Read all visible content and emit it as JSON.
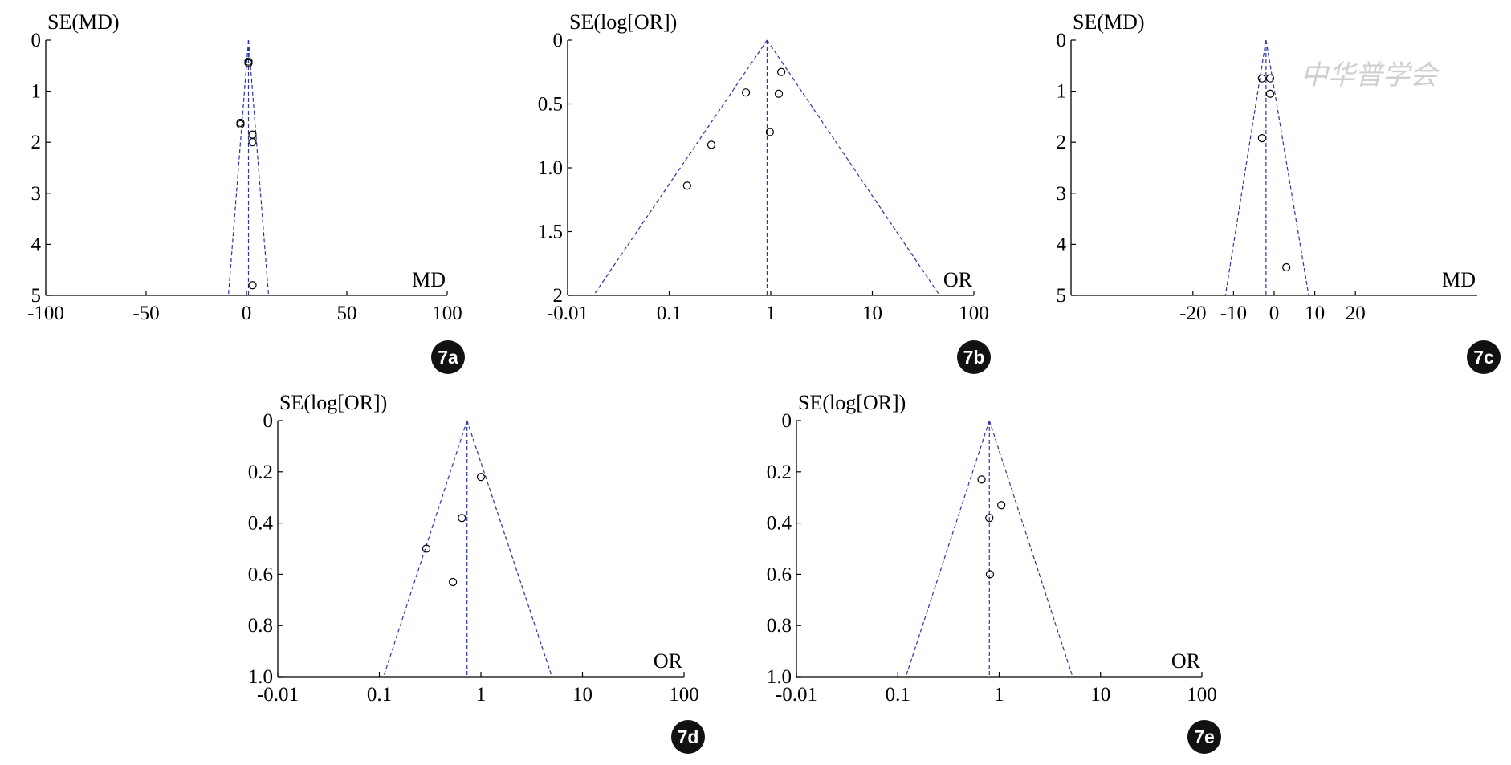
{
  "colors": {
    "axis": "#000000",
    "funnel": "#2b35a8",
    "points": "#000000",
    "badge": "#111111",
    "watermark": "#cfcfcf"
  },
  "watermark": {
    "text": "中华普学会"
  },
  "chart_data": [
    {
      "id": "7a",
      "badge": "7a",
      "type": "scatter",
      "scale": "linear",
      "ylabel": "SE(MD)",
      "xlabel": "MD",
      "xlim": [
        -100,
        100
      ],
      "ylim": [
        0,
        5
      ],
      "xticks": [
        -100,
        -50,
        0,
        50,
        100
      ],
      "xtick_labels": [
        "-100",
        "-50",
        "0",
        "50",
        "100"
      ],
      "yticks": [
        0,
        1,
        2,
        3,
        4,
        5
      ],
      "ytick_labels": [
        "0",
        "1",
        "2",
        "3",
        "4",
        "5"
      ],
      "pooled": 1,
      "funnel_bottom": [
        -9,
        11
      ],
      "points": [
        [
          1,
          0.42
        ],
        [
          1,
          0.45
        ],
        [
          -3,
          1.62
        ],
        [
          -3,
          1.65
        ],
        [
          3,
          1.85
        ],
        [
          3,
          2.0
        ],
        [
          3,
          4.8
        ]
      ]
    },
    {
      "id": "7b",
      "badge": "7b",
      "type": "scatter",
      "scale": "log",
      "ylabel": "SE(log[OR])",
      "xlabel": "OR",
      "xlim": [
        0.01,
        100
      ],
      "ylim": [
        0,
        2
      ],
      "xticks": [
        0.01,
        0.1,
        1,
        10,
        100
      ],
      "xtick_labels": [
        "-0.01",
        "0.1",
        "1",
        "10",
        "100"
      ],
      "yticks": [
        0,
        0.5,
        1.0,
        1.5,
        2
      ],
      "ytick_labels": [
        "0",
        "0.5",
        "1.0",
        "1.5",
        "2"
      ],
      "pooled": 0.92,
      "funnel_bottom": [
        0.018,
        46
      ],
      "points": [
        [
          1.27,
          0.25
        ],
        [
          0.57,
          0.41
        ],
        [
          1.2,
          0.42
        ],
        [
          0.98,
          0.72
        ],
        [
          0.26,
          0.82
        ],
        [
          0.15,
          1.14
        ]
      ]
    },
    {
      "id": "7c",
      "badge": "7c",
      "type": "scatter",
      "scale": "linear",
      "ylabel": "SE(MD)",
      "xlabel": "MD",
      "xlim": [
        -50,
        50
      ],
      "ylim": [
        0,
        5
      ],
      "xticks": [
        -20,
        -10,
        0,
        10,
        20
      ],
      "xtick_labels": [
        "-20",
        "-10",
        "0",
        "10",
        "20"
      ],
      "yticks": [
        0,
        1,
        2,
        3,
        4,
        5
      ],
      "ytick_labels": [
        "0",
        "1",
        "2",
        "3",
        "4",
        "5"
      ],
      "pooled": -2,
      "funnel_bottom": [
        -12,
        8.5
      ],
      "points": [
        [
          -3,
          0.75
        ],
        [
          -1,
          0.75
        ],
        [
          -1,
          1.05
        ],
        [
          -3,
          1.92
        ],
        [
          3,
          4.45
        ]
      ]
    },
    {
      "id": "7d",
      "badge": "7d",
      "type": "scatter",
      "scale": "log",
      "ylabel": "SE(log[OR])",
      "xlabel": "OR",
      "xlim": [
        0.01,
        100
      ],
      "ylim": [
        0,
        1.0
      ],
      "xticks": [
        0.01,
        0.1,
        1,
        10,
        100
      ],
      "xtick_labels": [
        "-0.01",
        "0.1",
        "1",
        "10",
        "100"
      ],
      "yticks": [
        0,
        0.2,
        0.4,
        0.6,
        0.8,
        1.0
      ],
      "ytick_labels": [
        "0",
        "0.2",
        "0.4",
        "0.6",
        "0.8",
        "1.0"
      ],
      "pooled": 0.73,
      "funnel_bottom": [
        0.11,
        5
      ],
      "points": [
        [
          1.0,
          0.22
        ],
        [
          0.65,
          0.38
        ],
        [
          0.29,
          0.5
        ],
        [
          0.53,
          0.63
        ]
      ]
    },
    {
      "id": "7e",
      "badge": "7e",
      "type": "scatter",
      "scale": "log",
      "ylabel": "SE(log[OR])",
      "xlabel": "OR",
      "xlim": [
        0.01,
        100
      ],
      "ylim": [
        0,
        1.0
      ],
      "xticks": [
        0.01,
        0.1,
        1,
        10,
        100
      ],
      "xtick_labels": [
        "-0.01",
        "0.1",
        "1",
        "10",
        "100"
      ],
      "yticks": [
        0,
        0.2,
        0.4,
        0.6,
        0.8,
        1.0
      ],
      "ytick_labels": [
        "0",
        "0.2",
        "0.4",
        "0.6",
        "0.8",
        "1.0"
      ],
      "pooled": 0.8,
      "funnel_bottom": [
        0.12,
        5.3
      ],
      "points": [
        [
          0.67,
          0.23
        ],
        [
          1.05,
          0.33
        ],
        [
          0.8,
          0.38
        ],
        [
          0.81,
          0.6
        ]
      ]
    }
  ]
}
